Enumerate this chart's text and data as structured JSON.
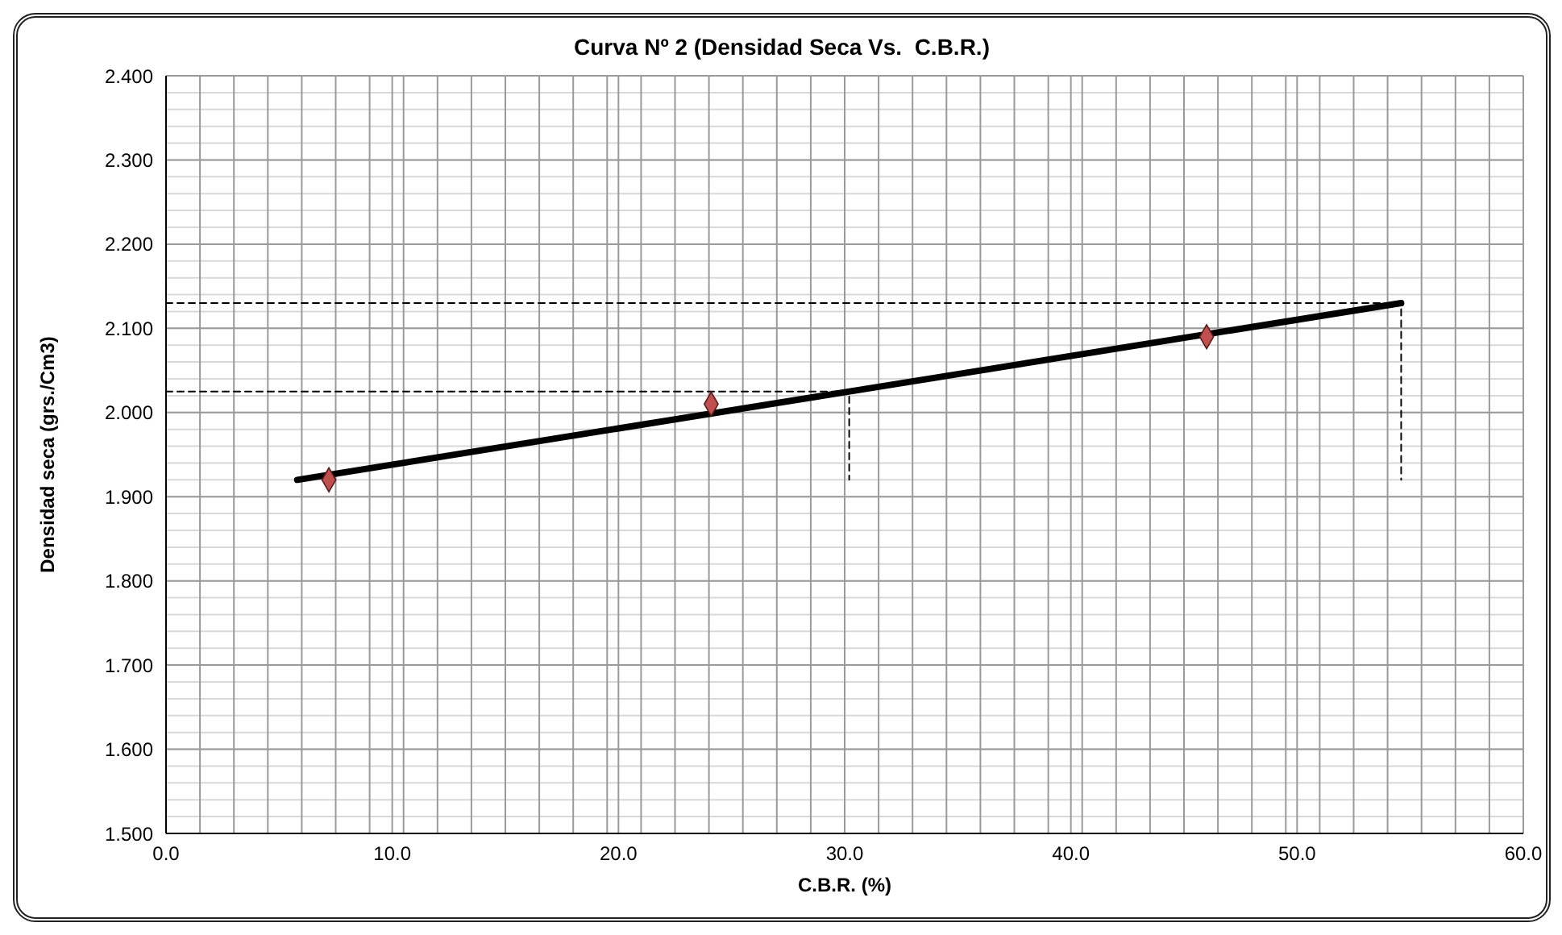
{
  "chart_data": {
    "type": "scatter",
    "title": "Curva Nº 2 (Densidad Seca Vs.  C.B.R.)",
    "xlabel": "C.B.R. (%)",
    "ylabel": "Densidad seca (grs./Cm3)",
    "xlim": [
      0,
      60
    ],
    "ylim": [
      1.5,
      2.4
    ],
    "grid": true,
    "xticks": [
      {
        "value": 0,
        "label": "0.0"
      },
      {
        "value": 10,
        "label": "10.0"
      },
      {
        "value": 20,
        "label": "20.0"
      },
      {
        "value": 30,
        "label": "30.0"
      },
      {
        "value": 40,
        "label": "40.0"
      },
      {
        "value": 50,
        "label": "50.0"
      },
      {
        "value": 60,
        "label": "60.0"
      },
      {
        "value": 1.5,
        "label": null
      },
      {
        "value": 3,
        "label": null
      },
      {
        "value": 4.5,
        "label": null
      },
      {
        "value": 6,
        "label": null
      },
      {
        "value": 7.5,
        "label": null
      },
      {
        "value": 9,
        "label": null
      },
      {
        "value": 10.5,
        "label": null
      },
      {
        "value": 12,
        "label": null
      },
      {
        "value": 13.5,
        "label": null
      },
      {
        "value": 15,
        "label": null
      },
      {
        "value": 16.5,
        "label": null
      },
      {
        "value": 18,
        "label": null
      },
      {
        "value": 19.5,
        "label": null
      },
      {
        "value": 21,
        "label": null
      },
      {
        "value": 22.5,
        "label": null
      },
      {
        "value": 24,
        "label": null
      },
      {
        "value": 25.5,
        "label": null
      },
      {
        "value": 27,
        "label": null
      },
      {
        "value": 28.5,
        "label": null
      },
      {
        "value": 31.5,
        "label": null
      },
      {
        "value": 33,
        "label": null
      },
      {
        "value": 34.5,
        "label": null
      },
      {
        "value": 36,
        "label": null
      },
      {
        "value": 37.5,
        "label": null
      },
      {
        "value": 39,
        "label": null
      },
      {
        "value": 40.5,
        "label": null
      },
      {
        "value": 42,
        "label": null
      },
      {
        "value": 43.5,
        "label": null
      },
      {
        "value": 45,
        "label": null
      },
      {
        "value": 46.5,
        "label": null
      },
      {
        "value": 48,
        "label": null
      },
      {
        "value": 49.5,
        "label": null
      },
      {
        "value": 51,
        "label": null
      },
      {
        "value": 52.5,
        "label": null
      },
      {
        "value": 54,
        "label": null
      },
      {
        "value": 55.5,
        "label": null
      },
      {
        "value": 57,
        "label": null
      },
      {
        "value": 58.5,
        "label": null
      }
    ],
    "yticks": [
      {
        "value": 1.5,
        "label": "1.500"
      },
      {
        "value": 1.6,
        "label": "1.600"
      },
      {
        "value": 1.7,
        "label": "1.700"
      },
      {
        "value": 1.8,
        "label": "1.800"
      },
      {
        "value": 1.9,
        "label": "1.900"
      },
      {
        "value": 2.0,
        "label": "2.000"
      },
      {
        "value": 2.1,
        "label": "2.100"
      },
      {
        "value": 2.2,
        "label": "2.200"
      },
      {
        "value": 2.3,
        "label": "2.300"
      },
      {
        "value": 2.4,
        "label": "2.400"
      },
      {
        "value": 1.52,
        "label": null
      },
      {
        "value": 1.54,
        "label": null
      },
      {
        "value": 1.56,
        "label": null
      },
      {
        "value": 1.58,
        "label": null
      },
      {
        "value": 1.62,
        "label": null
      },
      {
        "value": 1.64,
        "label": null
      },
      {
        "value": 1.66,
        "label": null
      },
      {
        "value": 1.68,
        "label": null
      },
      {
        "value": 1.72,
        "label": null
      },
      {
        "value": 1.74,
        "label": null
      },
      {
        "value": 1.76,
        "label": null
      },
      {
        "value": 1.78,
        "label": null
      },
      {
        "value": 1.82,
        "label": null
      },
      {
        "value": 1.84,
        "label": null
      },
      {
        "value": 1.86,
        "label": null
      },
      {
        "value": 1.88,
        "label": null
      },
      {
        "value": 1.92,
        "label": null
      },
      {
        "value": 1.94,
        "label": null
      },
      {
        "value": 1.96,
        "label": null
      },
      {
        "value": 1.98,
        "label": null
      },
      {
        "value": 2.02,
        "label": null
      },
      {
        "value": 2.04,
        "label": null
      },
      {
        "value": 2.06,
        "label": null
      },
      {
        "value": 2.08,
        "label": null
      },
      {
        "value": 2.12,
        "label": null
      },
      {
        "value": 2.14,
        "label": null
      },
      {
        "value": 2.16,
        "label": null
      },
      {
        "value": 2.18,
        "label": null
      },
      {
        "value": 2.22,
        "label": null
      },
      {
        "value": 2.24,
        "label": null
      },
      {
        "value": 2.26,
        "label": null
      },
      {
        "value": 2.28,
        "label": null
      },
      {
        "value": 2.32,
        "label": null
      },
      {
        "value": 2.34,
        "label": null
      },
      {
        "value": 2.36,
        "label": null
      },
      {
        "value": 2.38,
        "label": null
      }
    ],
    "series": [
      {
        "color": "#c0504d",
        "marker": "diamond",
        "x": [
          7.2,
          24.1,
          46.0
        ],
        "values": [
          1.92,
          2.01,
          2.09
        ]
      },
      {
        "type": "line",
        "color": "#000000",
        "marker": "none",
        "line_style": "solid",
        "x": [
          5.8,
          54.6
        ],
        "values": [
          1.92,
          2.13
        ]
      },
      {
        "type": "line",
        "color": "#000000",
        "marker": "none",
        "line_style": "dashed",
        "x": [
          0,
          54.6,
          54.6
        ],
        "values": [
          2.13,
          2.13,
          1.92
        ]
      },
      {
        "type": "line",
        "color": "#000000",
        "marker": "none",
        "line_style": "dashed",
        "x": [
          0,
          30.2,
          30.2
        ],
        "values": [
          2.025,
          2.025,
          1.92
        ]
      }
    ]
  }
}
